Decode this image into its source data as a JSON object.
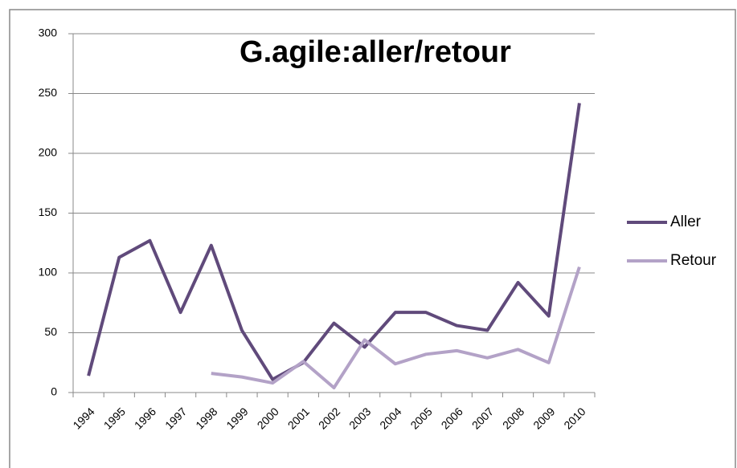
{
  "chart_data": {
    "type": "line",
    "title": "G.agile:aller/retour",
    "categories": [
      "1994",
      "1995",
      "1996",
      "1997",
      "1998",
      "1999",
      "2000",
      "2001",
      "2002",
      "2003",
      "2004",
      "2005",
      "2006",
      "2007",
      "2008",
      "2009",
      "2010"
    ],
    "series": [
      {
        "name": "Aller",
        "color": "#604a7b",
        "values": [
          14,
          113,
          127,
          67,
          123,
          52,
          11,
          25,
          58,
          38,
          67,
          67,
          56,
          52,
          92,
          64,
          242
        ]
      },
      {
        "name": "Retour",
        "color": "#b3a2c7",
        "values": [
          null,
          null,
          null,
          null,
          16,
          13,
          8,
          26,
          4,
          44,
          24,
          32,
          35,
          29,
          36,
          25,
          105
        ]
      }
    ],
    "ylim": [
      0,
      300
    ],
    "yticks": [
      0,
      50,
      100,
      150,
      200,
      250,
      300
    ],
    "grid": true,
    "legend": "right"
  }
}
